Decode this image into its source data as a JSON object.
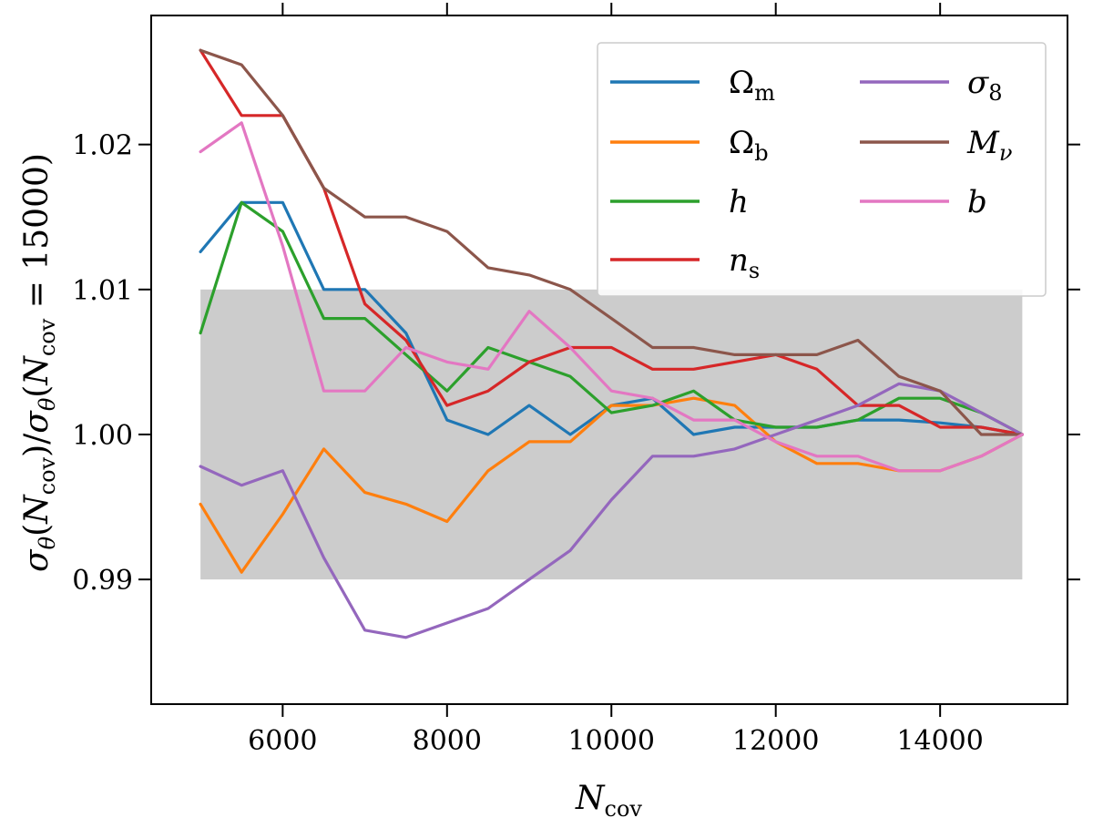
{
  "chart_data": {
    "type": "line",
    "title": "",
    "xlabel": "N_cov",
    "ylabel": "σ_θ(N_cov)/σ_θ(N_cov = 15000)",
    "xlim": [
      4400,
      15550
    ],
    "ylim": [
      0.9814,
      1.0289
    ],
    "xticks": [
      6000,
      8000,
      10000,
      12000,
      14000
    ],
    "xtick_labels": [
      "6000",
      "8000",
      "10000",
      "12000",
      "14000"
    ],
    "yticks": [
      0.99,
      1.0,
      1.01,
      1.02
    ],
    "ytick_labels": [
      "0.99",
      "1.00",
      "1.01",
      "1.02"
    ],
    "grid": false,
    "legend_position": "top-right",
    "shaded_band": {
      "x": [
        5000,
        15000
      ],
      "y": [
        0.99,
        1.01
      ],
      "color": "#cccccc"
    },
    "x": [
      5000,
      5500,
      6000,
      6500,
      7000,
      7500,
      8000,
      8500,
      9000,
      9500,
      10000,
      10500,
      11000,
      11500,
      12000,
      12500,
      13000,
      13500,
      14000,
      14500,
      15000
    ],
    "series": [
      {
        "name": "Ω_m",
        "color": "#1f77b4",
        "values": [
          1.0126,
          1.016,
          1.016,
          1.01,
          1.01,
          1.007,
          1.001,
          1.0,
          1.002,
          1.0,
          1.002,
          1.0025,
          1.0,
          1.0005,
          1.0005,
          1.0005,
          1.001,
          1.001,
          1.0008,
          1.0005,
          1.0
        ]
      },
      {
        "name": "Ω_b",
        "color": "#ff7f0e",
        "values": [
          0.9952,
          0.9905,
          0.9945,
          0.999,
          0.996,
          0.9952,
          0.994,
          0.9975,
          0.9995,
          0.9995,
          1.002,
          1.002,
          1.0025,
          1.002,
          0.9995,
          0.998,
          0.998,
          0.9975,
          0.9975,
          0.9985,
          1.0
        ]
      },
      {
        "name": "h",
        "color": "#2ca02c",
        "values": [
          1.007,
          1.016,
          1.014,
          1.008,
          1.008,
          1.0055,
          1.003,
          1.006,
          1.005,
          1.004,
          1.0015,
          1.002,
          1.003,
          1.001,
          1.0005,
          1.0005,
          1.001,
          1.0025,
          1.0025,
          1.0015,
          1.0
        ]
      },
      {
        "name": "n_s",
        "color": "#d62728",
        "values": [
          1.0265,
          1.022,
          1.022,
          1.017,
          1.009,
          1.0065,
          1.002,
          1.003,
          1.005,
          1.006,
          1.006,
          1.0045,
          1.0045,
          1.005,
          1.0055,
          1.0045,
          1.002,
          1.002,
          1.0005,
          1.0005,
          1.0
        ]
      },
      {
        "name": "σ_8",
        "color": "#9467bd",
        "values": [
          0.9978,
          0.9965,
          0.9975,
          0.9915,
          0.9865,
          0.986,
          0.987,
          0.988,
          0.99,
          0.992,
          0.9955,
          0.9985,
          0.9985,
          0.999,
          1.0,
          1.001,
          1.002,
          1.0035,
          1.003,
          1.0015,
          1.0
        ]
      },
      {
        "name": "M_ν",
        "color": "#8c564b",
        "values": [
          1.0265,
          1.0255,
          1.022,
          1.017,
          1.015,
          1.015,
          1.014,
          1.0115,
          1.011,
          1.01,
          1.008,
          1.006,
          1.006,
          1.0055,
          1.0055,
          1.0055,
          1.0065,
          1.004,
          1.003,
          1.0,
          1.0
        ]
      },
      {
        "name": "b",
        "color": "#e377c2",
        "values": [
          1.0195,
          1.0215,
          1.013,
          1.003,
          1.003,
          1.006,
          1.005,
          1.0045,
          1.0085,
          1.006,
          1.003,
          1.0025,
          1.001,
          1.001,
          0.9995,
          0.9985,
          0.9985,
          0.9975,
          0.9975,
          0.9985,
          1.0
        ]
      }
    ],
    "legend_labels": {
      "Ω_m": {
        "main": "Ω",
        "sub": "m"
      },
      "Ω_b": {
        "main": "Ω",
        "sub": "b"
      },
      "h": {
        "main": "h",
        "sub": ""
      },
      "n_s": {
        "main": "n",
        "sub": "s"
      },
      "σ_8": {
        "main": "σ",
        "sub": "8"
      },
      "M_ν": {
        "main": "M",
        "sub": "ν"
      },
      "b": {
        "main": "b",
        "sub": ""
      }
    }
  },
  "labels": {
    "x_main": "N",
    "x_sub": "cov",
    "y_parts": [
      "σ",
      "θ",
      "(",
      "N",
      "cov",
      ")/",
      "σ",
      "θ",
      "(",
      "N",
      "cov",
      " = 15000)"
    ]
  }
}
